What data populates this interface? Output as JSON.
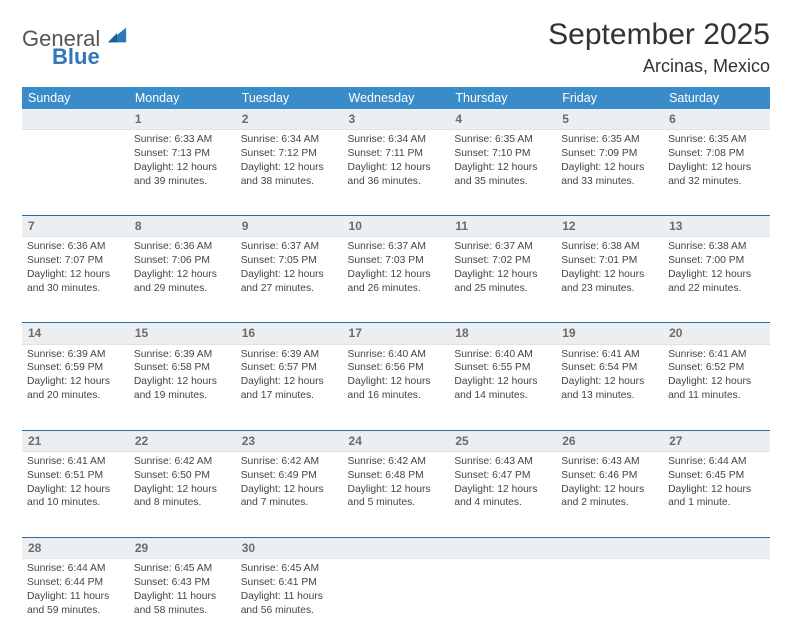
{
  "logo": {
    "text_gen": "General",
    "text_blue": "Blue"
  },
  "title": "September 2025",
  "subtitle": "Arcinas, Mexico",
  "colors": {
    "header_bg": "#3a8bc9",
    "header_text": "#ffffff",
    "daynum_bg": "#eceff1",
    "daynum_text": "#6b6b6b",
    "row_border": "#2e6da4",
    "body_text": "#444444",
    "logo_blue": "#2e77b8"
  },
  "weekdays": [
    "Sunday",
    "Monday",
    "Tuesday",
    "Wednesday",
    "Thursday",
    "Friday",
    "Saturday"
  ],
  "weeks": [
    {
      "nums": [
        "",
        "1",
        "2",
        "3",
        "4",
        "5",
        "6"
      ],
      "cells": [
        null,
        {
          "sunrise": "Sunrise: 6:33 AM",
          "sunset": "Sunset: 7:13 PM",
          "dl1": "Daylight: 12 hours",
          "dl2": "and 39 minutes."
        },
        {
          "sunrise": "Sunrise: 6:34 AM",
          "sunset": "Sunset: 7:12 PM",
          "dl1": "Daylight: 12 hours",
          "dl2": "and 38 minutes."
        },
        {
          "sunrise": "Sunrise: 6:34 AM",
          "sunset": "Sunset: 7:11 PM",
          "dl1": "Daylight: 12 hours",
          "dl2": "and 36 minutes."
        },
        {
          "sunrise": "Sunrise: 6:35 AM",
          "sunset": "Sunset: 7:10 PM",
          "dl1": "Daylight: 12 hours",
          "dl2": "and 35 minutes."
        },
        {
          "sunrise": "Sunrise: 6:35 AM",
          "sunset": "Sunset: 7:09 PM",
          "dl1": "Daylight: 12 hours",
          "dl2": "and 33 minutes."
        },
        {
          "sunrise": "Sunrise: 6:35 AM",
          "sunset": "Sunset: 7:08 PM",
          "dl1": "Daylight: 12 hours",
          "dl2": "and 32 minutes."
        }
      ]
    },
    {
      "nums": [
        "7",
        "8",
        "9",
        "10",
        "11",
        "12",
        "13"
      ],
      "cells": [
        {
          "sunrise": "Sunrise: 6:36 AM",
          "sunset": "Sunset: 7:07 PM",
          "dl1": "Daylight: 12 hours",
          "dl2": "and 30 minutes."
        },
        {
          "sunrise": "Sunrise: 6:36 AM",
          "sunset": "Sunset: 7:06 PM",
          "dl1": "Daylight: 12 hours",
          "dl2": "and 29 minutes."
        },
        {
          "sunrise": "Sunrise: 6:37 AM",
          "sunset": "Sunset: 7:05 PM",
          "dl1": "Daylight: 12 hours",
          "dl2": "and 27 minutes."
        },
        {
          "sunrise": "Sunrise: 6:37 AM",
          "sunset": "Sunset: 7:03 PM",
          "dl1": "Daylight: 12 hours",
          "dl2": "and 26 minutes."
        },
        {
          "sunrise": "Sunrise: 6:37 AM",
          "sunset": "Sunset: 7:02 PM",
          "dl1": "Daylight: 12 hours",
          "dl2": "and 25 minutes."
        },
        {
          "sunrise": "Sunrise: 6:38 AM",
          "sunset": "Sunset: 7:01 PM",
          "dl1": "Daylight: 12 hours",
          "dl2": "and 23 minutes."
        },
        {
          "sunrise": "Sunrise: 6:38 AM",
          "sunset": "Sunset: 7:00 PM",
          "dl1": "Daylight: 12 hours",
          "dl2": "and 22 minutes."
        }
      ]
    },
    {
      "nums": [
        "14",
        "15",
        "16",
        "17",
        "18",
        "19",
        "20"
      ],
      "cells": [
        {
          "sunrise": "Sunrise: 6:39 AM",
          "sunset": "Sunset: 6:59 PM",
          "dl1": "Daylight: 12 hours",
          "dl2": "and 20 minutes."
        },
        {
          "sunrise": "Sunrise: 6:39 AM",
          "sunset": "Sunset: 6:58 PM",
          "dl1": "Daylight: 12 hours",
          "dl2": "and 19 minutes."
        },
        {
          "sunrise": "Sunrise: 6:39 AM",
          "sunset": "Sunset: 6:57 PM",
          "dl1": "Daylight: 12 hours",
          "dl2": "and 17 minutes."
        },
        {
          "sunrise": "Sunrise: 6:40 AM",
          "sunset": "Sunset: 6:56 PM",
          "dl1": "Daylight: 12 hours",
          "dl2": "and 16 minutes."
        },
        {
          "sunrise": "Sunrise: 6:40 AM",
          "sunset": "Sunset: 6:55 PM",
          "dl1": "Daylight: 12 hours",
          "dl2": "and 14 minutes."
        },
        {
          "sunrise": "Sunrise: 6:41 AM",
          "sunset": "Sunset: 6:54 PM",
          "dl1": "Daylight: 12 hours",
          "dl2": "and 13 minutes."
        },
        {
          "sunrise": "Sunrise: 6:41 AM",
          "sunset": "Sunset: 6:52 PM",
          "dl1": "Daylight: 12 hours",
          "dl2": "and 11 minutes."
        }
      ]
    },
    {
      "nums": [
        "21",
        "22",
        "23",
        "24",
        "25",
        "26",
        "27"
      ],
      "cells": [
        {
          "sunrise": "Sunrise: 6:41 AM",
          "sunset": "Sunset: 6:51 PM",
          "dl1": "Daylight: 12 hours",
          "dl2": "and 10 minutes."
        },
        {
          "sunrise": "Sunrise: 6:42 AM",
          "sunset": "Sunset: 6:50 PM",
          "dl1": "Daylight: 12 hours",
          "dl2": "and 8 minutes."
        },
        {
          "sunrise": "Sunrise: 6:42 AM",
          "sunset": "Sunset: 6:49 PM",
          "dl1": "Daylight: 12 hours",
          "dl2": "and 7 minutes."
        },
        {
          "sunrise": "Sunrise: 6:42 AM",
          "sunset": "Sunset: 6:48 PM",
          "dl1": "Daylight: 12 hours",
          "dl2": "and 5 minutes."
        },
        {
          "sunrise": "Sunrise: 6:43 AM",
          "sunset": "Sunset: 6:47 PM",
          "dl1": "Daylight: 12 hours",
          "dl2": "and 4 minutes."
        },
        {
          "sunrise": "Sunrise: 6:43 AM",
          "sunset": "Sunset: 6:46 PM",
          "dl1": "Daylight: 12 hours",
          "dl2": "and 2 minutes."
        },
        {
          "sunrise": "Sunrise: 6:44 AM",
          "sunset": "Sunset: 6:45 PM",
          "dl1": "Daylight: 12 hours",
          "dl2": "and 1 minute."
        }
      ]
    },
    {
      "nums": [
        "28",
        "29",
        "30",
        "",
        "",
        "",
        ""
      ],
      "cells": [
        {
          "sunrise": "Sunrise: 6:44 AM",
          "sunset": "Sunset: 6:44 PM",
          "dl1": "Daylight: 11 hours",
          "dl2": "and 59 minutes."
        },
        {
          "sunrise": "Sunrise: 6:45 AM",
          "sunset": "Sunset: 6:43 PM",
          "dl1": "Daylight: 11 hours",
          "dl2": "and 58 minutes."
        },
        {
          "sunrise": "Sunrise: 6:45 AM",
          "sunset": "Sunset: 6:41 PM",
          "dl1": "Daylight: 11 hours",
          "dl2": "and 56 minutes."
        },
        null,
        null,
        null,
        null
      ]
    }
  ]
}
